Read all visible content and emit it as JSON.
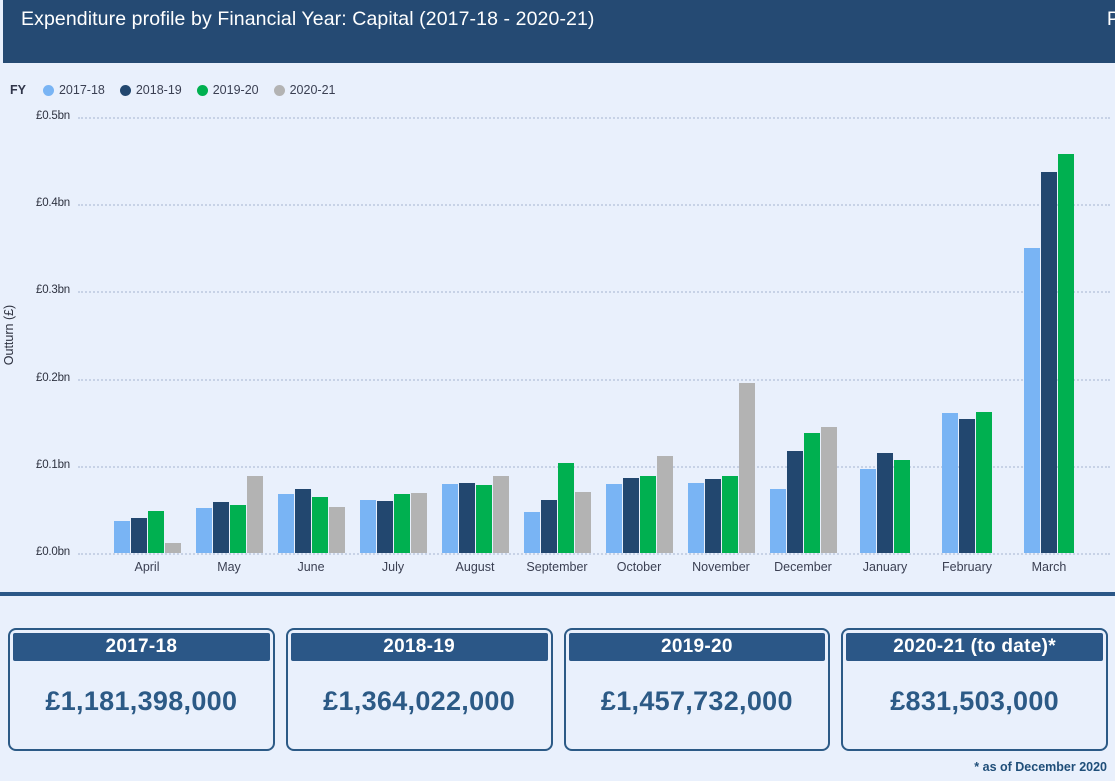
{
  "title_bar": {
    "title": "Expenditure profile by Financial Year: Capital (2017-18 - 2020-21)",
    "partial_right_text": "P"
  },
  "legend": {
    "label": "FY",
    "items": [
      {
        "label": "2017-18",
        "color": "#79B4F4"
      },
      {
        "label": "2018-19",
        "color": "#22476F"
      },
      {
        "label": "2019-20",
        "color": "#00B050"
      },
      {
        "label": "2020-21",
        "color": "#B3B3B3"
      }
    ]
  },
  "chart_data": {
    "type": "bar",
    "title": "Expenditure profile by Financial Year: Capital (2017-18 - 2020-21)",
    "xlabel": "",
    "ylabel": "Outturn (£)",
    "unit": "£bn",
    "ylim": [
      0,
      0.5
    ],
    "y_tick_step": 0.1,
    "y_tick_labels": [
      "£0.5bn",
      "£0.4bn",
      "£0.3bn",
      "£0.2bn",
      "£0.1bn",
      "£0.0bn"
    ],
    "grid": true,
    "legend_position": "top-left",
    "categories": [
      "April",
      "May",
      "June",
      "July",
      "August",
      "September",
      "October",
      "November",
      "December",
      "January",
      "February",
      "March"
    ],
    "series": [
      {
        "name": "2017-18",
        "color": "#79B4F4",
        "values": [
          0.037,
          0.052,
          0.068,
          0.061,
          0.079,
          0.047,
          0.079,
          0.08,
          0.073,
          0.096,
          0.161,
          0.35
        ]
      },
      {
        "name": "2018-19",
        "color": "#22476F",
        "values": [
          0.04,
          0.058,
          0.073,
          0.06,
          0.08,
          0.061,
          0.086,
          0.085,
          0.117,
          0.115,
          0.154,
          0.437
        ]
      },
      {
        "name": "2019-20",
        "color": "#00B050",
        "values": [
          0.048,
          0.055,
          0.064,
          0.068,
          0.078,
          0.103,
          0.088,
          0.088,
          0.138,
          0.107,
          0.162,
          0.458
        ]
      },
      {
        "name": "2020-21",
        "color": "#B3B3B3",
        "values": [
          0.012,
          0.088,
          0.053,
          0.069,
          0.088,
          0.07,
          0.111,
          0.195,
          0.144,
          null,
          null,
          null
        ]
      }
    ]
  },
  "summary_cards": [
    {
      "title": "2017-18",
      "value": "£1,181,398,000"
    },
    {
      "title": "2018-19",
      "value": "£1,364,022,000"
    },
    {
      "title": "2019-20",
      "value": "£1,457,732,000"
    },
    {
      "title": "2020-21 (to date)*",
      "value": "£831,503,000"
    }
  ],
  "footnote": "* as of December 2020",
  "colors": {
    "page_background": "#E9F0FC",
    "title_bar": "#254A73",
    "divider": "#2B5787",
    "card_border": "#2C5A86",
    "card_header": "#2B5787",
    "card_value_text": "#2C5A86",
    "gridline": "#C7D2E6",
    "axis_text": "#2E3240"
  }
}
